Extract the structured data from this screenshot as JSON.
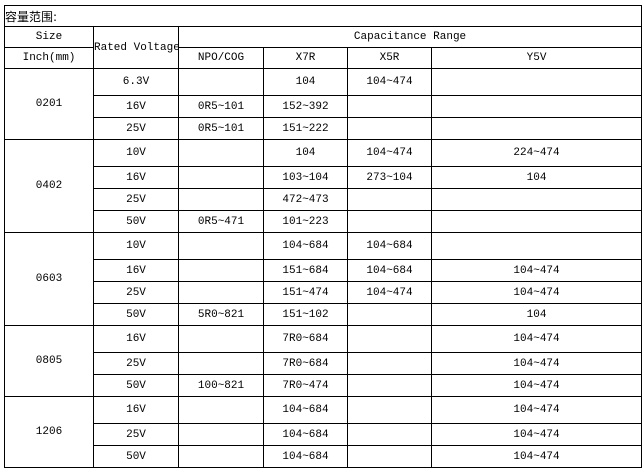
{
  "title": "容量范围:",
  "headers": {
    "size": "Size",
    "size_unit": "Inch(mm)",
    "rated_voltage": "Rated Voltage",
    "capacitance_range": "Capacitance Range",
    "dielectrics": [
      "NPO/COG",
      "X7R",
      "X5R",
      "Y5V"
    ]
  },
  "groups": [
    {
      "size": "0201",
      "rows": [
        {
          "voltage": "6.3V",
          "npo": "",
          "x7r": "104",
          "x5r": "104~474",
          "y5v": ""
        },
        {
          "voltage": "16V",
          "npo": "0R5~101",
          "x7r": "152~392",
          "x5r": "",
          "y5v": ""
        },
        {
          "voltage": "25V",
          "npo": "0R5~101",
          "x7r": "151~222",
          "x5r": "",
          "y5v": ""
        }
      ]
    },
    {
      "size": "0402",
      "rows": [
        {
          "voltage": "10V",
          "npo": "",
          "x7r": "104",
          "x5r": "104~474",
          "y5v": "224~474"
        },
        {
          "voltage": "16V",
          "npo": "",
          "x7r": "103~104",
          "x5r": "273~104",
          "y5v": "104"
        },
        {
          "voltage": "25V",
          "npo": "",
          "x7r": "472~473",
          "x5r": "",
          "y5v": ""
        },
        {
          "voltage": "50V",
          "npo": "0R5~471",
          "x7r": "101~223",
          "x5r": "",
          "y5v": ""
        }
      ]
    },
    {
      "size": "0603",
      "rows": [
        {
          "voltage": "10V",
          "npo": "",
          "x7r": "104~684",
          "x5r": "104~684",
          "y5v": ""
        },
        {
          "voltage": "16V",
          "npo": "",
          "x7r": "151~684",
          "x5r": "104~684",
          "y5v": "104~474"
        },
        {
          "voltage": "25V",
          "npo": "",
          "x7r": "151~474",
          "x5r": "104~474",
          "y5v": "104~474"
        },
        {
          "voltage": "50V",
          "npo": "5R0~821",
          "x7r": "151~102",
          "x5r": "",
          "y5v": "104"
        }
      ]
    },
    {
      "size": "0805",
      "rows": [
        {
          "voltage": "16V",
          "npo": "",
          "x7r": "7R0~684",
          "x5r": "",
          "y5v": "104~474"
        },
        {
          "voltage": "25V",
          "npo": "",
          "x7r": "7R0~684",
          "x5r": "",
          "y5v": "104~474"
        },
        {
          "voltage": "50V",
          "npo": "100~821",
          "x7r": "7R0~474",
          "x5r": "",
          "y5v": "104~474"
        }
      ]
    },
    {
      "size": "1206",
      "rows": [
        {
          "voltage": "16V",
          "npo": "",
          "x7r": "104~684",
          "x5r": "",
          "y5v": "104~474"
        },
        {
          "voltage": "25V",
          "npo": "",
          "x7r": "104~684",
          "x5r": "",
          "y5v": "104~474"
        },
        {
          "voltage": "50V",
          "npo": "",
          "x7r": "104~684",
          "x5r": "",
          "y5v": "104~474"
        }
      ]
    }
  ]
}
